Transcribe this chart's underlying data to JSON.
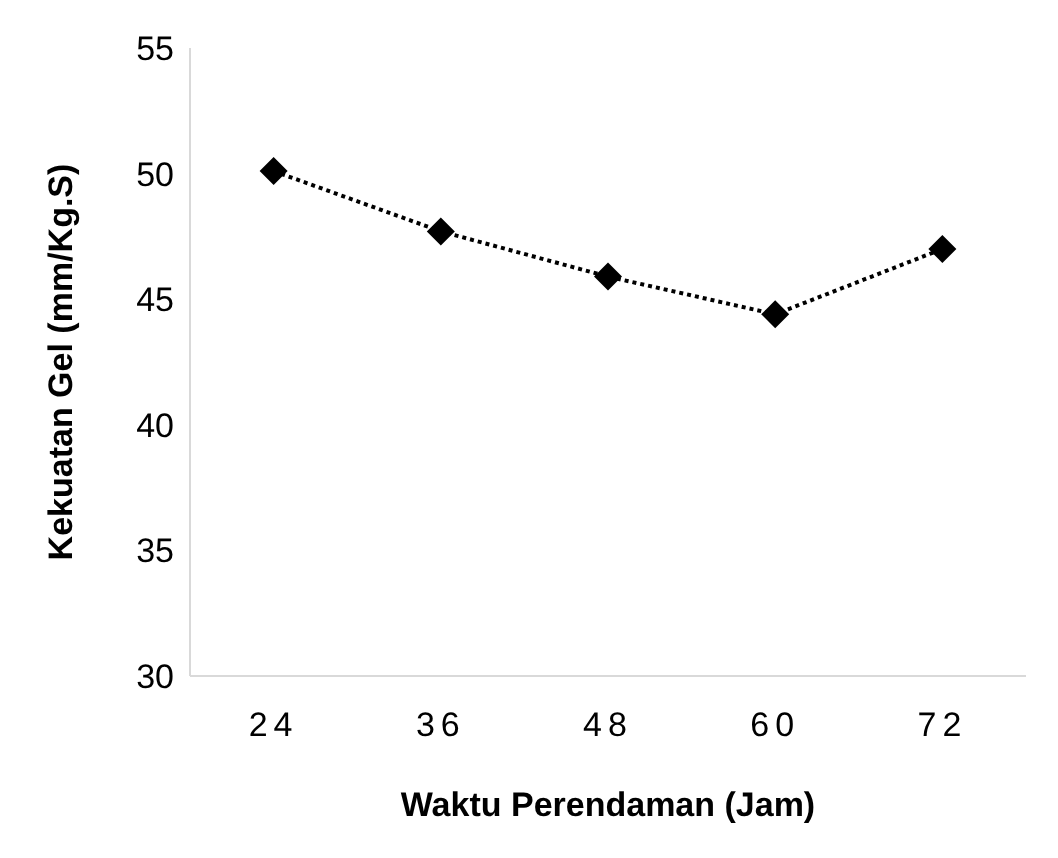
{
  "chart_data": {
    "type": "line",
    "xlabel": "Waktu Perendaman (Jam)",
    "ylabel": "Kekuatan Gel (mm/Kg.S)",
    "categories": [
      "24",
      "36",
      "48",
      "60",
      "72"
    ],
    "series": [
      {
        "color": "#000000",
        "values": [
          50.1,
          47.7,
          45.9,
          44.4,
          47.0
        ]
      }
    ],
    "ylim": [
      30,
      55
    ],
    "yticks": [
      30,
      35,
      40,
      45,
      50,
      55
    ],
    "marker": "diamond",
    "line_style": "dotted"
  }
}
